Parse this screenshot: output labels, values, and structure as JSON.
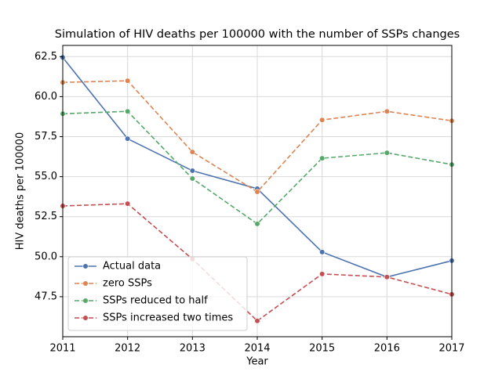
{
  "chart_data": {
    "type": "line",
    "title": "Simulation of HIV deaths per 100000 with the number of SSPs changes",
    "x_label": "Year",
    "y_label": "HIV deaths per 100000",
    "x": [
      2011,
      2012,
      2013,
      2014,
      2015,
      2016,
      2017
    ],
    "series": [
      {
        "name": "Actual data",
        "color": "#4c72b0",
        "linestyle": "solid",
        "values": [
          62.45,
          57.37,
          55.37,
          54.25,
          50.29,
          48.73,
          49.75
        ]
      },
      {
        "name": "zero SSPs",
        "color": "#dd8452",
        "linestyle": "dashed",
        "values": [
          60.89,
          60.99,
          56.54,
          54.05,
          58.54,
          59.08,
          58.49
        ]
      },
      {
        "name": "SSPs reduced to half",
        "color": "#55a868",
        "linestyle": "dashed",
        "values": [
          58.93,
          59.08,
          54.88,
          52.05,
          56.15,
          56.49,
          55.76
        ]
      },
      {
        "name": "SSPs increased two times",
        "color": "#c44e52",
        "linestyle": "dashed",
        "values": [
          53.17,
          53.31,
          49.85,
          45.99,
          48.92,
          48.73,
          47.65
        ]
      }
    ],
    "xlim": [
      2011,
      2017
    ],
    "xticks": [
      2011,
      2012,
      2013,
      2014,
      2015,
      2016,
      2017
    ],
    "ylim": [
      45.0,
      63.2
    ],
    "yticks": [
      47.5,
      {
        "value": 50,
        "label": "50.0"
      },
      52.5,
      {
        "value": 55,
        "label": "55.0"
      },
      57.5,
      {
        "value": 60,
        "label": "60.0"
      },
      62.5
    ],
    "grid": true,
    "legend": "lower left"
  }
}
